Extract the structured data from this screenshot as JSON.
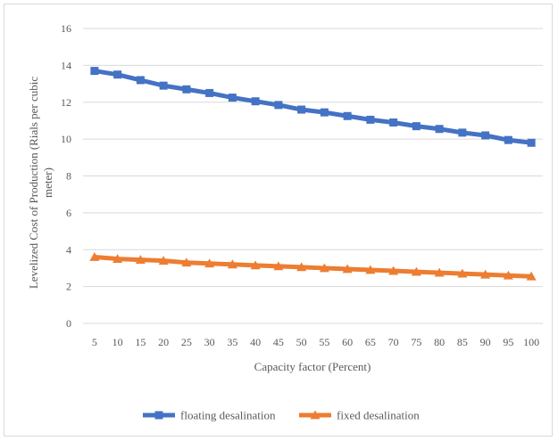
{
  "chart_data": {
    "type": "line",
    "title": "",
    "xlabel": "Capacity factor (Percent)",
    "ylabel_lines": [
      "Levelized Cost of Production (Rials per cubic",
      "meter)"
    ],
    "categories": [
      "5",
      "10",
      "15",
      "20",
      "25",
      "30",
      "35",
      "40",
      "45",
      "50",
      "55",
      "60",
      "65",
      "70",
      "75",
      "80",
      "85",
      "90",
      "95",
      "100"
    ],
    "ylim": [
      0,
      16
    ],
    "yticks": [
      "0",
      "2",
      "4",
      "6",
      "8",
      "10",
      "12",
      "14",
      "16"
    ],
    "grid": true,
    "legend_position": "bottom",
    "series": [
      {
        "name": "floating desalination",
        "color": "#4472c4",
        "marker": "square",
        "values": [
          13.7,
          13.5,
          13.2,
          12.9,
          12.7,
          12.5,
          12.25,
          12.05,
          11.85,
          11.6,
          11.45,
          11.25,
          11.05,
          10.9,
          10.7,
          10.55,
          10.35,
          10.2,
          9.95,
          9.8
        ]
      },
      {
        "name": "fixed desalination",
        "color": "#ed7d31",
        "marker": "triangle",
        "values": [
          3.6,
          3.5,
          3.45,
          3.4,
          3.3,
          3.25,
          3.2,
          3.15,
          3.1,
          3.05,
          3.0,
          2.95,
          2.9,
          2.85,
          2.8,
          2.75,
          2.7,
          2.65,
          2.6,
          2.55
        ]
      }
    ]
  }
}
